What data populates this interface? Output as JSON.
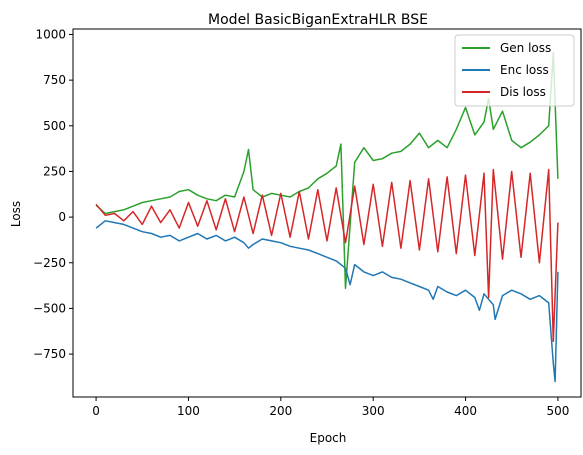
{
  "chart_data": {
    "type": "line",
    "title": "Model BasicBiganExtraHLR BSE",
    "xlabel": "Epoch",
    "ylabel": "Loss",
    "xlim": [
      -25,
      525
    ],
    "ylim": [
      -985,
      1030
    ],
    "xticks": [
      0,
      100,
      200,
      300,
      400,
      500
    ],
    "yticks": [
      -750,
      -500,
      -250,
      0,
      250,
      500,
      750,
      1000
    ],
    "grid": false,
    "legend_position": "top-right",
    "series": [
      {
        "name": "Gen loss",
        "color": "#2ca02c",
        "x": [
          0,
          10,
          20,
          30,
          40,
          50,
          60,
          70,
          80,
          90,
          100,
          110,
          120,
          130,
          140,
          150,
          160,
          165,
          170,
          180,
          190,
          200,
          210,
          220,
          230,
          240,
          250,
          260,
          265,
          270,
          280,
          290,
          300,
          310,
          320,
          330,
          340,
          350,
          360,
          370,
          380,
          390,
          400,
          410,
          420,
          425,
          430,
          440,
          450,
          460,
          470,
          480,
          490,
          495,
          500
        ],
        "values": [
          65,
          20,
          30,
          40,
          60,
          80,
          90,
          100,
          110,
          140,
          150,
          120,
          100,
          90,
          120,
          110,
          250,
          370,
          150,
          110,
          130,
          120,
          110,
          140,
          160,
          210,
          240,
          280,
          400,
          -390,
          300,
          380,
          310,
          320,
          350,
          360,
          400,
          460,
          380,
          420,
          380,
          480,
          600,
          450,
          520,
          650,
          480,
          580,
          420,
          380,
          410,
          450,
          500,
          900,
          210
        ]
      },
      {
        "name": "Enc loss",
        "color": "#1f77b4",
        "x": [
          0,
          10,
          20,
          30,
          40,
          50,
          60,
          70,
          80,
          90,
          100,
          110,
          120,
          130,
          140,
          150,
          160,
          165,
          170,
          180,
          190,
          200,
          210,
          220,
          230,
          240,
          250,
          260,
          270,
          275,
          280,
          290,
          300,
          310,
          320,
          330,
          340,
          350,
          360,
          365,
          370,
          380,
          390,
          400,
          410,
          415,
          420,
          430,
          432,
          440,
          450,
          460,
          470,
          480,
          490,
          495,
          497,
          500
        ],
        "values": [
          -60,
          -20,
          -30,
          -40,
          -60,
          -80,
          -90,
          -110,
          -100,
          -130,
          -110,
          -90,
          -120,
          -100,
          -130,
          -110,
          -140,
          -170,
          -150,
          -120,
          -130,
          -140,
          -160,
          -170,
          -180,
          -200,
          -220,
          -240,
          -280,
          -370,
          -260,
          -300,
          -320,
          -300,
          -330,
          -340,
          -360,
          -380,
          -400,
          -450,
          -380,
          -410,
          -430,
          -400,
          -440,
          -510,
          -420,
          -480,
          -560,
          -430,
          -400,
          -420,
          -450,
          -430,
          -470,
          -800,
          -900,
          -300
        ]
      },
      {
        "name": "Dis loss",
        "color": "#d62728",
        "x": [
          0,
          10,
          20,
          30,
          40,
          50,
          60,
          70,
          80,
          90,
          100,
          110,
          120,
          130,
          140,
          150,
          160,
          170,
          180,
          190,
          200,
          210,
          220,
          230,
          240,
          250,
          260,
          270,
          280,
          290,
          300,
          310,
          320,
          330,
          340,
          350,
          360,
          370,
          380,
          390,
          400,
          410,
          420,
          425,
          430,
          440,
          450,
          460,
          470,
          480,
          490,
          495,
          500
        ],
        "values": [
          70,
          10,
          20,
          -20,
          30,
          -40,
          60,
          -30,
          40,
          -60,
          80,
          -50,
          90,
          -70,
          100,
          -80,
          110,
          -90,
          120,
          -100,
          130,
          -110,
          140,
          -120,
          150,
          -130,
          160,
          -140,
          170,
          -150,
          180,
          -160,
          190,
          -170,
          200,
          -180,
          210,
          -190,
          220,
          -200,
          230,
          -210,
          240,
          -440,
          260,
          -230,
          250,
          -220,
          240,
          -250,
          260,
          -680,
          -30
        ]
      }
    ]
  }
}
